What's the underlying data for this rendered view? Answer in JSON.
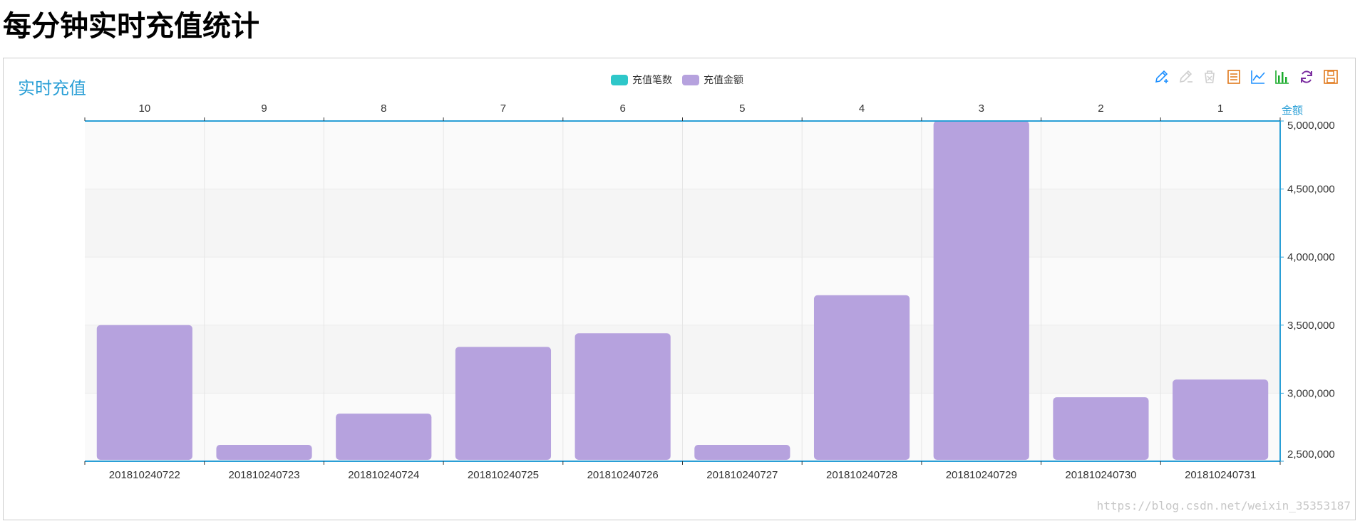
{
  "page": {
    "title": "每分钟实时充值统计"
  },
  "chart": {
    "title": "实时充值"
  },
  "legend": [
    {
      "label": "充值笔数",
      "color": "#2ec7c9"
    },
    {
      "label": "充值金额",
      "color": "#b6a2de"
    }
  ],
  "toolbox": [
    {
      "name": "mark-pen-icon",
      "color": "#1e90ff"
    },
    {
      "name": "mark-undo-icon",
      "color": "#cfcfcf"
    },
    {
      "name": "mark-clear-icon",
      "color": "#cfcfcf"
    },
    {
      "name": "data-view-icon",
      "color": "#e0781a"
    },
    {
      "name": "line-chart-icon",
      "color": "#1e90ff"
    },
    {
      "name": "bar-chart-icon",
      "color": "#1aab2b"
    },
    {
      "name": "refresh-icon",
      "color": "#7b2ea0"
    },
    {
      "name": "save-image-icon",
      "color": "#e0781a"
    }
  ],
  "watermark": "https://blog.csdn.net/weixin_35353187",
  "chart_data": {
    "type": "bar",
    "categories": [
      "201810240722",
      "201810240723",
      "201810240724",
      "201810240725",
      "201810240726",
      "201810240727",
      "201810240728",
      "201810240729",
      "201810240730",
      "201810240731"
    ],
    "top_categories": [
      "10",
      "9",
      "8",
      "7",
      "6",
      "5",
      "4",
      "3",
      "2",
      "1"
    ],
    "series": [
      {
        "name": "充值金额",
        "values": [
          3500000,
          2620000,
          2850000,
          3340000,
          3440000,
          2620000,
          3720000,
          5050000,
          2970000,
          3100000
        ],
        "color": "#b6a2de"
      }
    ],
    "ylabel": "金额",
    "ylim": [
      2500000,
      5000000
    ],
    "yticks": [
      2500000,
      3000000,
      3500000,
      4000000,
      4500000,
      5000000
    ],
    "ytick_labels": [
      "2,500,000",
      "3,000,000",
      "3,500,000",
      "4,000,000",
      "4,500,000",
      "5,000,000"
    ],
    "y_axis_position": "right",
    "grid": true,
    "legend_position": "top-center",
    "axis_color": "#2a9fd6"
  }
}
